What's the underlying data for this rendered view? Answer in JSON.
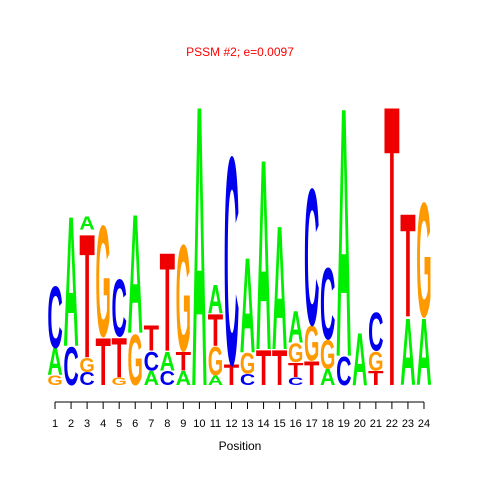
{
  "chart_data": {
    "type": "sequence-logo",
    "title": "PSSM #2; e=0.0097",
    "xlabel": "Position",
    "ylabel": "",
    "x": [
      1,
      2,
      3,
      4,
      5,
      6,
      7,
      8,
      9,
      10,
      11,
      12,
      13,
      14,
      15,
      16,
      17,
      18,
      19,
      20,
      21,
      22,
      23,
      24
    ],
    "ylim": [
      0,
      2
    ],
    "colors": {
      "A": "#00ee00",
      "C": "#0000ee",
      "G": "#ff9900",
      "T": "#ee0000"
    },
    "positions": [
      {
        "pos": 1,
        "letters": [
          {
            "b": "G",
            "h": 0.06
          },
          {
            "b": "A",
            "h": 0.17
          },
          {
            "b": "C",
            "h": 0.39
          }
        ]
      },
      {
        "pos": 2,
        "letters": [
          {
            "b": "C",
            "h": 0.24
          },
          {
            "b": "A",
            "h": 0.82
          }
        ]
      },
      {
        "pos": 3,
        "letters": [
          {
            "b": "C",
            "h": 0.08
          },
          {
            "b": "G",
            "h": 0.09
          },
          {
            "b": "T",
            "h": 0.78
          },
          {
            "b": "A",
            "h": 0.08
          }
        ]
      },
      {
        "pos": 4,
        "letters": [
          {
            "b": "T",
            "h": 0.3
          },
          {
            "b": "G",
            "h": 0.7
          }
        ]
      },
      {
        "pos": 5,
        "letters": [
          {
            "b": "G",
            "h": 0.05
          },
          {
            "b": "T",
            "h": 0.25
          },
          {
            "b": "C",
            "h": 0.36
          }
        ]
      },
      {
        "pos": 6,
        "letters": [
          {
            "b": "G",
            "h": 0.32
          },
          {
            "b": "A",
            "h": 0.75
          }
        ]
      },
      {
        "pos": 7,
        "letters": [
          {
            "b": "A",
            "h": 0.09
          },
          {
            "b": "C",
            "h": 0.12
          },
          {
            "b": "T",
            "h": 0.16
          }
        ]
      },
      {
        "pos": 8,
        "letters": [
          {
            "b": "C",
            "h": 0.09
          },
          {
            "b": "A",
            "h": 0.12
          },
          {
            "b": "T",
            "h": 0.62
          }
        ]
      },
      {
        "pos": 9,
        "letters": [
          {
            "b": "A",
            "h": 0.09
          },
          {
            "b": "T",
            "h": 0.12
          },
          {
            "b": "G",
            "h": 0.67
          }
        ]
      },
      {
        "pos": 10,
        "letters": [
          {
            "b": "A",
            "h": 1.77
          }
        ]
      },
      {
        "pos": 11,
        "letters": [
          {
            "b": "A",
            "h": 0.06
          },
          {
            "b": "G",
            "h": 0.18
          },
          {
            "b": "T",
            "h": 0.2
          },
          {
            "b": "A",
            "h": 0.18
          }
        ]
      },
      {
        "pos": 12,
        "letters": [
          {
            "b": "T",
            "h": 0.13
          },
          {
            "b": "C",
            "h": 1.31
          }
        ]
      },
      {
        "pos": 13,
        "letters": [
          {
            "b": "C",
            "h": 0.07
          },
          {
            "b": "G",
            "h": 0.13
          },
          {
            "b": "A",
            "h": 0.6
          }
        ]
      },
      {
        "pos": 14,
        "letters": [
          {
            "b": "T",
            "h": 0.22
          },
          {
            "b": "A",
            "h": 1.2
          }
        ]
      },
      {
        "pos": 15,
        "letters": [
          {
            "b": "T",
            "h": 0.22
          },
          {
            "b": "A",
            "h": 0.78
          }
        ]
      },
      {
        "pos": 16,
        "letters": [
          {
            "b": "C",
            "h": 0.05
          },
          {
            "b": "T",
            "h": 0.09
          },
          {
            "b": "G",
            "h": 0.12
          },
          {
            "b": "A",
            "h": 0.2
          }
        ]
      },
      {
        "pos": 17,
        "letters": [
          {
            "b": "T",
            "h": 0.15
          },
          {
            "b": "G",
            "h": 0.22
          },
          {
            "b": "C",
            "h": 0.86
          }
        ]
      },
      {
        "pos": 18,
        "letters": [
          {
            "b": "A",
            "h": 0.1
          },
          {
            "b": "G",
            "h": 0.18
          },
          {
            "b": "C",
            "h": 0.45
          }
        ]
      },
      {
        "pos": 19,
        "letters": [
          {
            "b": "C",
            "h": 0.18
          },
          {
            "b": "A",
            "h": 1.57
          }
        ]
      },
      {
        "pos": 20,
        "letters": [
          {
            "b": "A",
            "h": 0.33
          }
        ]
      },
      {
        "pos": 21,
        "letters": [
          {
            "b": "T",
            "h": 0.09
          },
          {
            "b": "G",
            "h": 0.12
          },
          {
            "b": "C",
            "h": 0.24
          }
        ]
      },
      {
        "pos": 22,
        "letters": [
          {
            "b": "T",
            "h": 1.77
          }
        ]
      },
      {
        "pos": 23,
        "letters": [
          {
            "b": "A",
            "h": 0.42
          },
          {
            "b": "T",
            "h": 0.65
          }
        ]
      },
      {
        "pos": 24,
        "letters": [
          {
            "b": "A",
            "h": 0.42
          },
          {
            "b": "G",
            "h": 0.72
          }
        ]
      }
    ]
  }
}
